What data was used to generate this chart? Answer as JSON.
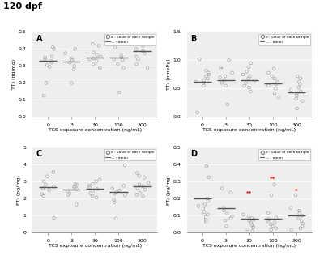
{
  "title": "120 dpf",
  "x_positions": [
    0,
    3,
    30,
    100,
    300
  ],
  "x_labels": [
    "0",
    "3",
    "30",
    "100",
    "300"
  ],
  "xlabel": "TCS exposure concentration (ng/mL)",
  "legend_circle": "o : value of each sample",
  "legend_line": "— : mean",
  "A": {
    "ylabel": "TT₃ (ng/mg)",
    "ylim": [
      0.0,
      0.5
    ],
    "yticks": [
      0.0,
      0.1,
      0.2,
      0.3,
      0.4,
      0.5
    ],
    "means": [
      0.33,
      0.325,
      0.35,
      0.348,
      0.39
    ],
    "data": [
      [
        0.125,
        0.295,
        0.305,
        0.32,
        0.33,
        0.34,
        0.35,
        0.355,
        0.4,
        0.41,
        0.2
      ],
      [
        0.2,
        0.28,
        0.3,
        0.32,
        0.335,
        0.345,
        0.375,
        0.4
      ],
      [
        0.29,
        0.31,
        0.33,
        0.34,
        0.345,
        0.355,
        0.365,
        0.38,
        0.42,
        0.43
      ],
      [
        0.145,
        0.29,
        0.31,
        0.335,
        0.34,
        0.35,
        0.36,
        0.41,
        0.43,
        0.45
      ],
      [
        0.29,
        0.31,
        0.34,
        0.355,
        0.375,
        0.385,
        0.39,
        0.4,
        0.42,
        0.445,
        0.47
      ]
    ]
  },
  "B": {
    "ylabel": "TT₄ (nmol/g)",
    "ylim": [
      0.0,
      1.5
    ],
    "yticks": [
      0.0,
      0.5,
      1.0,
      1.5
    ],
    "means": [
      0.615,
      0.655,
      0.65,
      0.59,
      0.44
    ],
    "data": [
      [
        0.08,
        0.55,
        0.6,
        0.62,
        0.65,
        0.68,
        0.72,
        0.75,
        0.78,
        0.82,
        1.02
      ],
      [
        0.22,
        0.55,
        0.6,
        0.65,
        0.7,
        0.72,
        0.78,
        0.85,
        0.88,
        1.0
      ],
      [
        0.45,
        0.52,
        0.55,
        0.6,
        0.65,
        0.68,
        0.72,
        0.75,
        0.8,
        0.88,
        0.95
      ],
      [
        0.35,
        0.42,
        0.5,
        0.55,
        0.58,
        0.62,
        0.68,
        0.72,
        0.78,
        0.85
      ],
      [
        0.15,
        0.28,
        0.32,
        0.38,
        0.42,
        0.45,
        0.48,
        0.52,
        0.58,
        0.62,
        0.68,
        0.72
      ]
    ]
  },
  "C": {
    "ylabel": "FT₃ (pg/mg)",
    "ylim": [
      0,
      5
    ],
    "yticks": [
      0,
      1,
      2,
      3,
      4,
      5
    ],
    "means": [
      2.68,
      2.52,
      2.55,
      2.38,
      2.72
    ],
    "data": [
      [
        0.85,
        2.15,
        2.25,
        2.5,
        2.6,
        2.7,
        2.8,
        3.0,
        3.3,
        3.55
      ],
      [
        1.65,
        2.2,
        2.3,
        2.42,
        2.55,
        2.65,
        2.72,
        2.8,
        2.85
      ],
      [
        2.05,
        2.15,
        2.3,
        2.45,
        2.55,
        2.65,
        2.75,
        2.85,
        3.0,
        3.1
      ],
      [
        0.82,
        1.78,
        1.92,
        2.18,
        2.28,
        2.38,
        2.48,
        2.58,
        2.75,
        3.95
      ],
      [
        2.12,
        2.22,
        2.32,
        2.52,
        2.62,
        2.72,
        2.82,
        2.92,
        3.22,
        3.32,
        3.5
      ]
    ]
  },
  "D": {
    "ylabel": "FT₄ (pg/mg)",
    "ylim": [
      0.0,
      0.5
    ],
    "yticks": [
      0.0,
      0.1,
      0.2,
      0.3,
      0.4,
      0.5
    ],
    "means": [
      0.2,
      0.143,
      0.08,
      0.082,
      0.102
    ],
    "data": [
      [
        0.065,
        0.075,
        0.09,
        0.105,
        0.12,
        0.14,
        0.155,
        0.165,
        0.185,
        0.2,
        0.325,
        0.39
      ],
      [
        0.038,
        0.07,
        0.082,
        0.095,
        0.11,
        0.13,
        0.145,
        0.235,
        0.26
      ],
      [
        0.008,
        0.018,
        0.028,
        0.035,
        0.045,
        0.058,
        0.068,
        0.075,
        0.085,
        0.095,
        0.105
      ],
      [
        0.015,
        0.025,
        0.038,
        0.048,
        0.058,
        0.068,
        0.078,
        0.088,
        0.115,
        0.218,
        0.282
      ],
      [
        0.015,
        0.025,
        0.038,
        0.052,
        0.068,
        0.085,
        0.098,
        0.112,
        0.128,
        0.145,
        0.22
      ]
    ],
    "red_stars": {
      "30": "**",
      "100": "**",
      "300": "*"
    },
    "red_star_y": {
      "30": 0.215,
      "100": 0.3,
      "300": 0.23
    }
  }
}
